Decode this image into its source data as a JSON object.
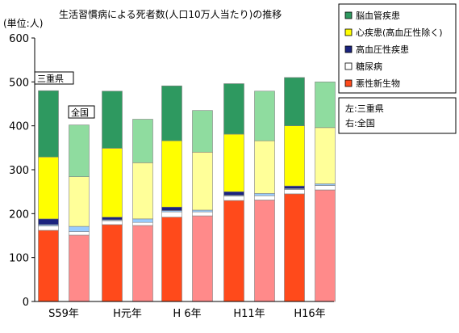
{
  "chart_data": {
    "type": "bar",
    "stacked": true,
    "title": "生活習慣病による死者数(人口10万人当たり)の推移",
    "unit_label": "(単位:人)",
    "ylim": [
      0,
      600
    ],
    "yticks": [
      0,
      100,
      200,
      300,
      400,
      500,
      600
    ],
    "grid": false,
    "categories": [
      "S59年",
      "H元年",
      "H 6年",
      "H11年",
      "H16年"
    ],
    "groups": [
      "三重県",
      "全国"
    ],
    "series": [
      {
        "name": "悪性新生物",
        "color_mie": "#ff4a1b",
        "color_zenkoku": "#ff8a8a",
        "values": {
          "三重県": [
            162,
            175,
            192,
            230,
            245
          ],
          "全国": [
            151,
            173,
            195,
            231,
            254
          ]
        }
      },
      {
        "name": "糖尿病",
        "color_mie": "#ffffff",
        "color_zenkoku": "#ffffff",
        "values": {
          "三重県": [
            10,
            9,
            12,
            10,
            10
          ],
          "全国": [
            8,
            7,
            9,
            10,
            10
          ]
        }
      },
      {
        "name": "",
        "color_mie": "#99ccff",
        "color_zenkoku": "#99ccff",
        "values": {
          "三重県": [
            3,
            2,
            3,
            2,
            2
          ],
          "全国": [
            12,
            8,
            4,
            5,
            4
          ]
        }
      },
      {
        "name": "高血圧性疾患",
        "color_mie": "#1a237e",
        "color_zenkoku": "#1a237e",
        "values": {
          "三重県": [
            13,
            6,
            8,
            8,
            6
          ],
          "全国": [
            0,
            0,
            0,
            0,
            0
          ]
        }
      },
      {
        "name": "心疾患(高血圧性除く)",
        "color_mie": "#ffff00",
        "color_zenkoku": "#ffff99",
        "values": {
          "三重県": [
            141,
            157,
            151,
            131,
            137
          ],
          "全国": [
            113,
            128,
            132,
            120,
            128
          ]
        }
      },
      {
        "name": "脳血管疾患",
        "color_mie": "#2e9960",
        "color_zenkoku": "#8fdc9f",
        "values": {
          "三重県": [
            151,
            130,
            125,
            115,
            110
          ],
          "全国": [
            118,
            99,
            95,
            113,
            104
          ]
        }
      }
    ],
    "legend": {
      "position": "right",
      "items": [
        {
          "label": "脳血管疾患",
          "color": "#2e9960"
        },
        {
          "label": "心疾患(高血圧性除く)",
          "color": "#ffff00"
        },
        {
          "label": "高血圧性疾患",
          "color": "#1a237e"
        },
        {
          "label": "糖尿病",
          "color": "#ffffff"
        },
        {
          "label": "悪性新生物",
          "color": "#ff4a1b"
        }
      ]
    },
    "side_note": [
      "左:三重県",
      "右:全国"
    ],
    "callouts": {
      "mie": "三重県",
      "zenkoku": "全国"
    }
  }
}
